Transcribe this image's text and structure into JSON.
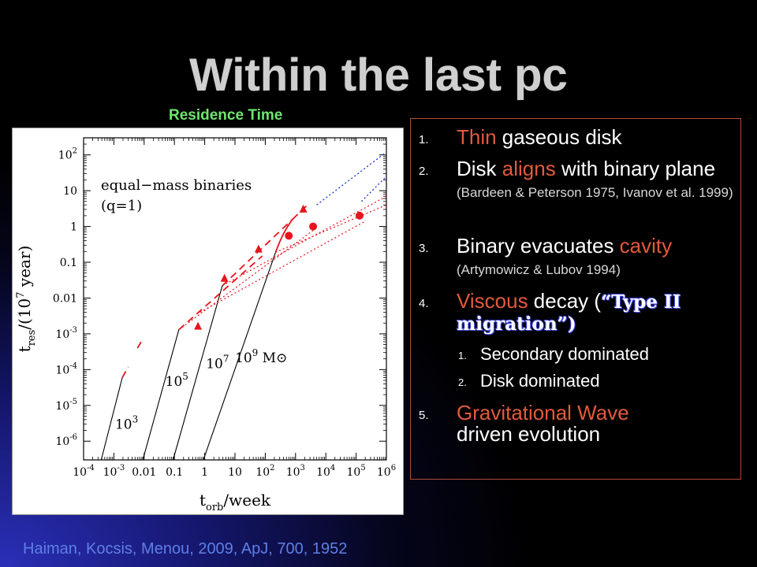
{
  "slide": {
    "title": "Within the last pc",
    "residence_label": "Residence Time",
    "citation": "Haiman, Kocsis, Menou, 2009, ApJ, 700, 1952"
  },
  "list": {
    "n1": "1.",
    "n2": "2.",
    "n3": "3.",
    "n4": "4.",
    "n5": "5.",
    "i1_hl": "Thin",
    "i1_rest": " gaseous disk",
    "i2_a": "Disk ",
    "i2_hl": "aligns",
    "i2_b": " with binary plane ",
    "i2_ref": "(Bardeen & Peterson 1975, Ivanov et al. 1999)",
    "i3_a": "Binary evacuates ",
    "i3_hl": "cavity",
    "i3_ref": "(Artymowicz & Lubov 1994)",
    "i4_hl": "Viscous",
    "i4_a": " decay (",
    "i4_b": "“Type II migration”)",
    "s1n": "1.",
    "s1": "Secondary dominated",
    "s2n": "2.",
    "s2": "Disk dominated",
    "i5_hl": "Gravitational Wave",
    "i5_rest": "driven evolution"
  },
  "chart_data": {
    "type": "line",
    "xscale": "log",
    "yscale": "log",
    "xlim": [
      0.0001,
      1000000
    ],
    "ylim": [
      3e-07,
      300
    ],
    "xlabel_main": "t",
    "xlabel_sub": "orb",
    "xlabel_rest": "/week",
    "ylabel_main": "t",
    "ylabel_sub": "res",
    "ylabel_rest": "/(10",
    "ylabel_exp": "7",
    "ylabel_tail": " year)",
    "xticks": [
      {
        "v": 0.0001,
        "b": "10",
        "e": "-4"
      },
      {
        "v": 0.001,
        "b": "10",
        "e": "-3"
      },
      {
        "v": 0.01,
        "b": "0.01",
        "e": ""
      },
      {
        "v": 0.1,
        "b": "0.1",
        "e": ""
      },
      {
        "v": 1,
        "b": "1",
        "e": ""
      },
      {
        "v": 10,
        "b": "10",
        "e": ""
      },
      {
        "v": 100,
        "b": "10",
        "e": "2"
      },
      {
        "v": 1000,
        "b": "10",
        "e": "3"
      },
      {
        "v": 10000,
        "b": "10",
        "e": "4"
      },
      {
        "v": 100000,
        "b": "10",
        "e": "5"
      },
      {
        "v": 1000000,
        "b": "10",
        "e": "6"
      }
    ],
    "yticks": [
      {
        "v": 1e-06,
        "b": "10",
        "e": "-6"
      },
      {
        "v": 1e-05,
        "b": "10",
        "e": "-5"
      },
      {
        "v": 0.0001,
        "b": "10",
        "e": "-4"
      },
      {
        "v": 0.001,
        "b": "10",
        "e": "-3"
      },
      {
        "v": 0.01,
        "b": "0.01",
        "e": ""
      },
      {
        "v": 0.1,
        "b": "0.1",
        "e": ""
      },
      {
        "v": 1,
        "b": "1",
        "e": ""
      },
      {
        "v": 10,
        "b": "10",
        "e": ""
      },
      {
        "v": 100,
        "b": "10",
        "e": "2"
      }
    ],
    "annotation": {
      "line1": "equal−mass binaries",
      "line2": "(q=1)"
    },
    "mass_labels": [
      {
        "b": "10",
        "e": "3",
        "x": 0.0011,
        "y": 2.2e-06,
        "suffix": ""
      },
      {
        "b": "10",
        "e": "5",
        "x": 0.05,
        "y": 3.5e-05,
        "suffix": ""
      },
      {
        "b": "10",
        "e": "7",
        "x": 1.1,
        "y": 0.00011,
        "suffix": ""
      },
      {
        "b": "10",
        "e": "9",
        "x": 10,
        "y": 0.00016,
        "suffix": " M⊙"
      }
    ],
    "series": [
      {
        "style": "gw",
        "points": [
          [
            0.00038,
            2.95e-07
          ],
          [
            0.0019,
            6e-05
          ]
        ]
      },
      {
        "style": "gw",
        "points": [
          [
            0.009,
            2.95e-07
          ],
          [
            0.14,
            0.0013
          ]
        ]
      },
      {
        "style": "gw",
        "points": [
          [
            0.09,
            2.95e-07
          ],
          [
            3.8,
            0.022
          ]
        ]
      },
      {
        "style": "gw",
        "points": [
          [
            0.9,
            2.95e-07
          ],
          [
            220,
            0.19
          ]
        ]
      },
      {
        "style": "gw_curve",
        "points": [
          [
            220,
            0.19
          ],
          [
            380,
            0.7
          ],
          [
            800,
            1.6
          ]
        ]
      },
      {
        "style": "secondary",
        "points": [
          [
            0.0019,
            6e-05
          ],
          [
            0.003,
            0.00012
          ]
        ]
      },
      {
        "style": "secondary",
        "points": [
          [
            0.006,
            0.0004
          ],
          [
            0.008,
            0.0006
          ]
        ]
      },
      {
        "style": "secondary",
        "points": [
          [
            0.14,
            0.0013
          ],
          [
            80,
            0.15
          ]
        ]
      },
      {
        "style": "secondary",
        "points": [
          [
            3.8,
            0.022
          ],
          [
            800,
            1.6
          ]
        ]
      },
      {
        "style": "secondary",
        "points": [
          [
            800,
            1.6
          ],
          [
            2500,
            4
          ]
        ]
      },
      {
        "style": "disk",
        "points": [
          [
            0.14,
            0.0013
          ],
          [
            4000,
            0.8
          ]
        ]
      },
      {
        "style": "disk",
        "points": [
          [
            0.7,
            0.004
          ],
          [
            200000,
            1.4
          ]
        ]
      },
      {
        "style": "disk",
        "points": [
          [
            3.8,
            0.022
          ],
          [
            1000000,
            7
          ]
        ]
      },
      {
        "style": "disk",
        "points": [
          [
            220,
            0.19
          ],
          [
            1000000,
            4
          ]
        ]
      },
      {
        "style": "blue",
        "points": [
          [
            5000,
            4
          ],
          [
            1000000,
            120
          ]
        ]
      },
      {
        "style": "blue",
        "points": [
          [
            150000,
            5
          ],
          [
            1000000,
            25
          ]
        ]
      }
    ],
    "arrows": [
      {
        "x": 0.6,
        "y": 0.0016
      },
      {
        "x": 4.5,
        "y": 0.035
      },
      {
        "x": 60,
        "y": 0.23
      },
      {
        "x": 1800,
        "y": 3
      }
    ],
    "circles": [
      {
        "x": 600,
        "y": 0.55
      },
      {
        "x": 3800,
        "y": 1.0
      },
      {
        "x": 130000,
        "y": 2.0
      }
    ],
    "colors": {
      "gw": "#000000",
      "gas": "#e8141e",
      "blue": "#1530d8"
    }
  }
}
